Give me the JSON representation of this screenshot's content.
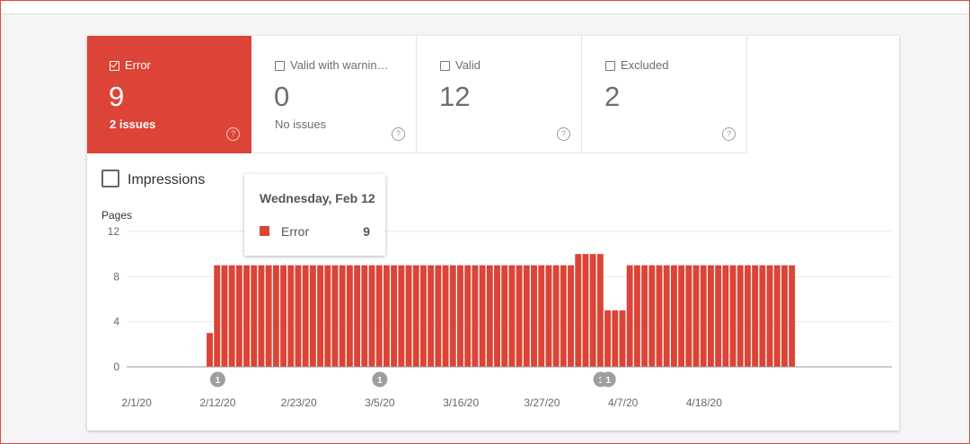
{
  "tiles": [
    {
      "label": "Error",
      "count": "9",
      "sub": "2 issues",
      "checked": true
    },
    {
      "label": "Valid with warnin…",
      "count": "0",
      "sub": "No issues",
      "checked": false
    },
    {
      "label": "Valid",
      "count": "12",
      "sub": "",
      "checked": false
    },
    {
      "label": "Excluded",
      "count": "2",
      "sub": "",
      "checked": false
    }
  ],
  "help_glyph": "?",
  "impressions_label": "Impressions",
  "tooltip": {
    "date": "Wednesday, Feb 12",
    "series": "Error",
    "value": "9"
  },
  "colors": {
    "error": "#db4437",
    "grid": "#e8e8e8"
  },
  "chart_data": {
    "type": "bar",
    "ylabel": "Pages",
    "ylim": [
      0,
      12
    ],
    "yticks": [
      0,
      4,
      8,
      12
    ],
    "x_ticks": [
      "2/1/20",
      "2/12/20",
      "2/23/20",
      "3/5/20",
      "3/16/20",
      "3/27/20",
      "4/7/20",
      "4/18/20"
    ],
    "x": [
      "2/1/20",
      "2/2/20",
      "2/3/20",
      "2/4/20",
      "2/5/20",
      "2/6/20",
      "2/7/20",
      "2/8/20",
      "2/9/20",
      "2/10/20",
      "2/11/20",
      "2/12/20",
      "2/13/20",
      "2/14/20",
      "2/15/20",
      "2/16/20",
      "2/17/20",
      "2/18/20",
      "2/19/20",
      "2/20/20",
      "2/21/20",
      "2/22/20",
      "2/23/20",
      "2/24/20",
      "2/25/20",
      "2/26/20",
      "2/27/20",
      "2/28/20",
      "2/29/20",
      "3/1/20",
      "3/2/20",
      "3/3/20",
      "3/4/20",
      "3/5/20",
      "3/6/20",
      "3/7/20",
      "3/8/20",
      "3/9/20",
      "3/10/20",
      "3/11/20",
      "3/12/20",
      "3/13/20",
      "3/14/20",
      "3/15/20",
      "3/16/20",
      "3/17/20",
      "3/18/20",
      "3/19/20",
      "3/20/20",
      "3/21/20",
      "3/22/20",
      "3/23/20",
      "3/24/20",
      "3/25/20",
      "3/26/20",
      "3/27/20",
      "3/28/20",
      "3/29/20",
      "3/30/20",
      "3/31/20",
      "4/1/20",
      "4/2/20",
      "4/3/20",
      "4/4/20",
      "4/5/20",
      "4/6/20",
      "4/7/20",
      "4/8/20",
      "4/9/20",
      "4/10/20",
      "4/11/20",
      "4/12/20",
      "4/13/20",
      "4/14/20",
      "4/15/20",
      "4/16/20",
      "4/17/20",
      "4/18/20",
      "4/19/20",
      "4/20/20",
      "4/21/20",
      "4/22/20",
      "4/23/20",
      "4/24/20",
      "4/25/20",
      "4/26/20",
      "4/27/20",
      "4/28/20",
      "4/29/20",
      "4/30/20"
    ],
    "series": [
      {
        "name": "Error",
        "values": [
          0,
          0,
          0,
          0,
          0,
          0,
          0,
          0,
          0,
          0,
          3,
          9,
          9,
          9,
          9,
          9,
          9,
          9,
          9,
          9,
          9,
          9,
          9,
          9,
          9,
          9,
          9,
          9,
          9,
          9,
          9,
          9,
          9,
          9,
          9,
          9,
          9,
          9,
          9,
          9,
          9,
          9,
          9,
          9,
          9,
          9,
          9,
          9,
          9,
          9,
          9,
          9,
          9,
          9,
          9,
          9,
          9,
          9,
          9,
          9,
          10,
          10,
          10,
          10,
          5,
          5,
          5,
          9,
          9,
          9,
          9,
          9,
          9,
          9,
          9,
          9,
          9,
          9,
          9,
          9,
          9,
          9,
          9,
          9,
          9,
          9,
          9,
          9,
          9,
          9
        ]
      }
    ],
    "annotations": [
      {
        "x": "2/12/20",
        "label": "1"
      },
      {
        "x": "3/5/20",
        "label": "1"
      },
      {
        "x": "4/4/20",
        "label": "1"
      },
      {
        "x": "4/5/20",
        "label": "1"
      }
    ]
  }
}
